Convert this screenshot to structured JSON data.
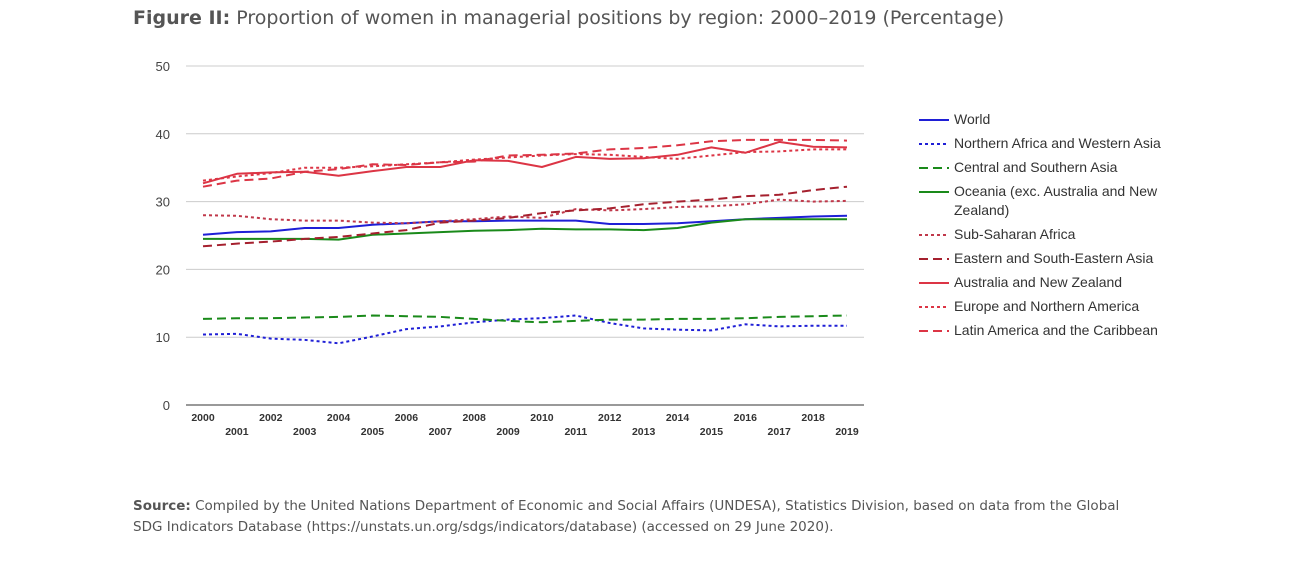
{
  "figure": {
    "label": "Figure II:",
    "title_text": "Proportion of women in managerial positions by region: 2000–2019 (Percentage)"
  },
  "source": {
    "label": "Source:",
    "text": "Compiled by the United Nations Department of Economic and Social Affairs (UNDESA), Statistics Division, based on data from the Global SDG Indicators Database (https://unstats.un.org/sdgs/indicators/database) (accessed on 29 June 2020)."
  },
  "chart_data": {
    "type": "line",
    "title": "Proportion of women in managerial positions by region: 2000–2019 (Percentage)",
    "xlabel": "",
    "ylabel": "",
    "ylim": [
      0,
      50
    ],
    "yticks": [
      0,
      10,
      20,
      30,
      40,
      50
    ],
    "grid": true,
    "legend_position": "right",
    "x": [
      2000,
      2001,
      2002,
      2003,
      2004,
      2005,
      2006,
      2007,
      2008,
      2009,
      2010,
      2011,
      2012,
      2013,
      2014,
      2015,
      2016,
      2017,
      2018,
      2019
    ],
    "x_tick_labels": [
      "2000",
      "2001",
      "2002",
      "2003",
      "2004",
      "2005",
      "2006",
      "2007",
      "2008",
      "2009",
      "2010",
      "2011",
      "2012",
      "2013",
      "2014",
      "2015",
      "2016",
      "2017",
      "2018",
      "2019"
    ],
    "series": [
      {
        "name": "World",
        "color": "#1f1fd6",
        "style": "solid",
        "values": [
          25.1,
          25.5,
          25.6,
          26.1,
          26.1,
          26.6,
          26.8,
          27.1,
          27.1,
          27.2,
          27.2,
          27.2,
          26.7,
          26.7,
          26.8,
          27.1,
          27.4,
          27.6,
          27.8,
          27.9
        ]
      },
      {
        "name": "Northern Africa and Western Asia",
        "color": "#1f1fd6",
        "style": "dotted",
        "values": [
          10.4,
          10.5,
          9.8,
          9.6,
          9.1,
          10.1,
          11.2,
          11.6,
          12.2,
          12.6,
          12.8,
          13.2,
          12.1,
          11.3,
          11.1,
          11.0,
          11.9,
          11.6,
          11.7,
          11.7
        ]
      },
      {
        "name": "Central and Southern Asia",
        "color": "#1a8a1a",
        "style": "dashed",
        "values": [
          12.7,
          12.8,
          12.8,
          12.9,
          13.0,
          13.2,
          13.1,
          13.0,
          12.7,
          12.4,
          12.2,
          12.4,
          12.6,
          12.6,
          12.7,
          12.7,
          12.8,
          13.0,
          13.1,
          13.2
        ]
      },
      {
        "name": "Oceania (exc. Australia and New Zealand)",
        "color": "#1a8a1a",
        "style": "solid",
        "values": [
          24.5,
          24.5,
          24.5,
          24.5,
          24.4,
          25.1,
          25.3,
          25.5,
          25.7,
          25.8,
          26.0,
          25.9,
          25.9,
          25.8,
          26.1,
          26.9,
          27.4,
          27.4,
          27.4,
          27.4
        ]
      },
      {
        "name": "Sub-Saharan Africa",
        "color": "#c0384a",
        "style": "dotted",
        "values": [
          28.0,
          27.9,
          27.4,
          27.2,
          27.2,
          26.9,
          26.8,
          27.1,
          27.4,
          27.8,
          27.6,
          28.9,
          28.7,
          28.9,
          29.2,
          29.3,
          29.6,
          30.3,
          30.0,
          30.1
        ]
      },
      {
        "name": "Eastern and South-Eastern Asia",
        "color": "#a5202e",
        "style": "dashed",
        "values": [
          23.4,
          23.8,
          24.1,
          24.5,
          24.8,
          25.3,
          25.8,
          26.9,
          27.2,
          27.6,
          28.3,
          28.7,
          29.0,
          29.6,
          30.0,
          30.3,
          30.8,
          31.0,
          31.7,
          32.2
        ]
      },
      {
        "name": "Australia and New Zealand",
        "color": "#dc3545",
        "style": "solid",
        "values": [
          32.7,
          34.1,
          34.3,
          34.4,
          33.8,
          34.5,
          35.1,
          35.1,
          36.1,
          36.0,
          35.1,
          36.6,
          36.3,
          36.4,
          36.9,
          38.0,
          37.2,
          38.8,
          38.1,
          38.0
        ]
      },
      {
        "name": "Europe and Northern America",
        "color": "#dc3545",
        "style": "dotted",
        "values": [
          33.1,
          33.7,
          34.2,
          35.0,
          35.0,
          35.2,
          35.5,
          35.8,
          36.2,
          36.5,
          36.8,
          37.0,
          36.9,
          36.6,
          36.3,
          36.8,
          37.3,
          37.4,
          37.7,
          37.7
        ]
      },
      {
        "name": "Latin America and the Caribbean",
        "color": "#dc3545",
        "style": "dashed",
        "values": [
          32.2,
          33.1,
          33.4,
          34.4,
          34.8,
          35.5,
          35.4,
          35.8,
          35.9,
          36.8,
          36.9,
          37.1,
          37.7,
          37.9,
          38.3,
          38.9,
          39.1,
          39.1,
          39.1,
          39.0
        ]
      }
    ]
  }
}
